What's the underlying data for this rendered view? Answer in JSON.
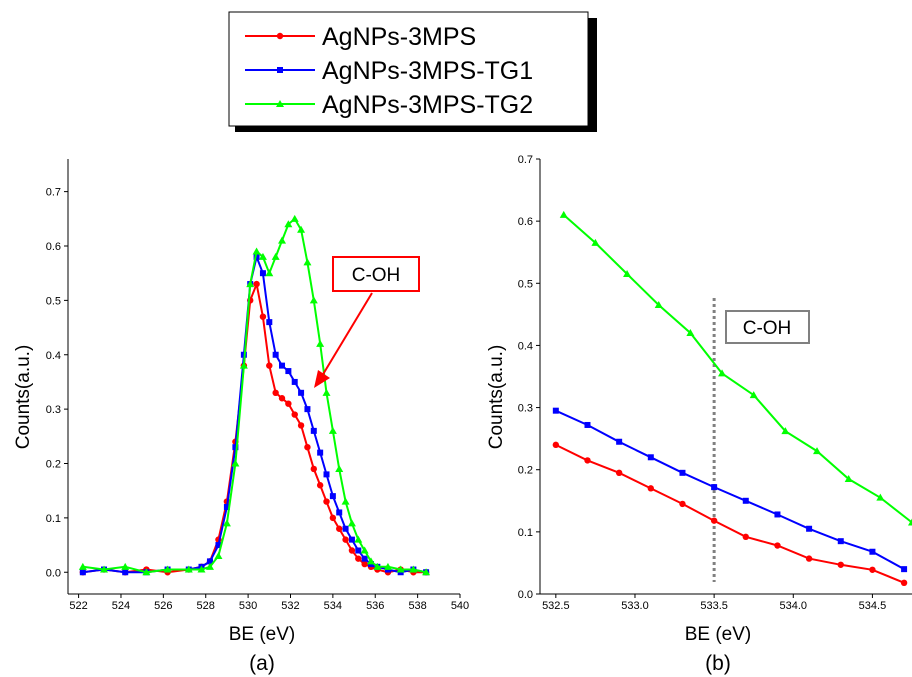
{
  "legend": {
    "entries": [
      {
        "label": "AgNPs-3MPS",
        "color": "#ff0000",
        "marker": "circle"
      },
      {
        "label": "AgNPs-3MPS-TG1",
        "color": "#0000ff",
        "marker": "square"
      },
      {
        "label": "AgNPs-3MPS-TG2",
        "color": "#00ff00",
        "marker": "triangle"
      }
    ]
  },
  "chart_data": [
    {
      "type": "line",
      "panel_label": "(a)",
      "xlabel": "BE (eV)",
      "ylabel": "Counts(a.u.)",
      "xlim": [
        521.5,
        540
      ],
      "ylim": [
        -0.04,
        0.76
      ],
      "xticks": [
        522,
        524,
        526,
        528,
        530,
        532,
        534,
        536,
        538,
        540
      ],
      "yticks": [
        0.0,
        0.1,
        0.2,
        0.3,
        0.4,
        0.5,
        0.6,
        0.7
      ],
      "annotation": {
        "text": "C-OH",
        "box_color": "#ff0000",
        "arrow_color": "#ff0000",
        "arrow_to": [
          533.6,
          0.32
        ]
      },
      "series": [
        {
          "name": "AgNPs-3MPS",
          "color": "#ff0000",
          "marker": "circle",
          "x": [
            522.2,
            523.2,
            524.2,
            525.2,
            526.2,
            527.2,
            527.8,
            528.2,
            528.6,
            529.0,
            529.4,
            529.8,
            530.1,
            530.4,
            530.7,
            531.0,
            531.3,
            531.6,
            531.9,
            532.2,
            532.5,
            532.8,
            533.1,
            533.4,
            533.7,
            534.0,
            534.3,
            534.6,
            534.9,
            535.2,
            535.5,
            535.8,
            536.1,
            536.6,
            537.2,
            537.8,
            538.4
          ],
          "y": [
            0.0,
            0.005,
            0.0,
            0.005,
            0.0,
            0.005,
            0.01,
            0.02,
            0.06,
            0.13,
            0.24,
            0.38,
            0.5,
            0.53,
            0.47,
            0.38,
            0.33,
            0.32,
            0.31,
            0.29,
            0.27,
            0.23,
            0.19,
            0.16,
            0.13,
            0.1,
            0.08,
            0.06,
            0.04,
            0.025,
            0.015,
            0.01,
            0.005,
            0.0,
            0.005,
            0.0,
            0.0
          ]
        },
        {
          "name": "AgNPs-3MPS-TG1",
          "color": "#0000ff",
          "marker": "square",
          "x": [
            522.2,
            523.2,
            524.2,
            525.2,
            526.2,
            527.2,
            527.8,
            528.2,
            528.6,
            529.0,
            529.4,
            529.8,
            530.1,
            530.4,
            530.7,
            531.0,
            531.3,
            531.6,
            531.9,
            532.2,
            532.5,
            532.8,
            533.1,
            533.4,
            533.7,
            534.0,
            534.3,
            534.6,
            534.9,
            535.2,
            535.5,
            535.8,
            536.1,
            536.6,
            537.2,
            537.8,
            538.4
          ],
          "y": [
            0.0,
            0.005,
            0.0,
            0.0,
            0.005,
            0.005,
            0.01,
            0.02,
            0.05,
            0.12,
            0.23,
            0.4,
            0.53,
            0.58,
            0.55,
            0.46,
            0.4,
            0.38,
            0.37,
            0.35,
            0.33,
            0.3,
            0.26,
            0.22,
            0.18,
            0.14,
            0.11,
            0.08,
            0.06,
            0.04,
            0.025,
            0.015,
            0.01,
            0.005,
            0.0,
            0.005,
            0.0
          ]
        },
        {
          "name": "AgNPs-3MPS-TG2",
          "color": "#00ff00",
          "marker": "triangle",
          "x": [
            522.2,
            523.2,
            524.2,
            525.2,
            526.2,
            527.2,
            527.8,
            528.2,
            528.6,
            529.0,
            529.4,
            529.8,
            530.1,
            530.4,
            530.7,
            531.0,
            531.3,
            531.6,
            531.9,
            532.2,
            532.5,
            532.8,
            533.1,
            533.4,
            533.7,
            534.0,
            534.3,
            534.6,
            534.9,
            535.2,
            535.5,
            535.8,
            536.1,
            536.6,
            537.2,
            537.8,
            538.4
          ],
          "y": [
            0.01,
            0.005,
            0.01,
            0.0,
            0.005,
            0.005,
            0.005,
            0.01,
            0.03,
            0.09,
            0.2,
            0.38,
            0.53,
            0.59,
            0.58,
            0.55,
            0.58,
            0.61,
            0.64,
            0.65,
            0.63,
            0.57,
            0.5,
            0.42,
            0.33,
            0.26,
            0.19,
            0.13,
            0.09,
            0.06,
            0.04,
            0.02,
            0.01,
            0.01,
            0.005,
            0.005,
            0.0
          ]
        }
      ]
    },
    {
      "type": "line",
      "panel_label": "(b)",
      "xlabel": "BE (eV)",
      "ylabel": "Counts(a.u.)",
      "xlim": [
        532.4,
        534.75
      ],
      "ylim": [
        0.0,
        0.7
      ],
      "xticks": [
        532.5,
        533.0,
        533.5,
        534.0,
        534.5
      ],
      "yticks": [
        0.0,
        0.1,
        0.2,
        0.3,
        0.4,
        0.5,
        0.6,
        0.7
      ],
      "vline": {
        "x": 533.5,
        "color": "#808080",
        "style": "dotted"
      },
      "annotation": {
        "text": "C-OH",
        "box_color": "#808080"
      },
      "series": [
        {
          "name": "AgNPs-3MPS",
          "color": "#ff0000",
          "marker": "circle",
          "x": [
            532.5,
            532.7,
            532.9,
            533.1,
            533.3,
            533.5,
            533.7,
            533.9,
            534.1,
            534.3,
            534.5,
            534.7
          ],
          "y": [
            0.24,
            0.215,
            0.195,
            0.17,
            0.145,
            0.118,
            0.092,
            0.078,
            0.057,
            0.047,
            0.039,
            0.018
          ]
        },
        {
          "name": "AgNPs-3MPS-TG1",
          "color": "#0000ff",
          "marker": "square",
          "x": [
            532.5,
            532.7,
            532.9,
            533.1,
            533.3,
            533.5,
            533.7,
            533.9,
            534.1,
            534.3,
            534.5,
            534.7
          ],
          "y": [
            0.295,
            0.272,
            0.245,
            0.22,
            0.195,
            0.172,
            0.15,
            0.128,
            0.105,
            0.085,
            0.068,
            0.04
          ]
        },
        {
          "name": "AgNPs-3MPS-TG2",
          "color": "#00ff00",
          "marker": "triangle",
          "x": [
            532.55,
            532.75,
            532.95,
            533.15,
            533.35,
            533.55,
            533.75,
            533.95,
            534.15,
            534.35,
            534.55,
            534.75
          ],
          "y": [
            0.61,
            0.565,
            0.515,
            0.465,
            0.42,
            0.355,
            0.32,
            0.262,
            0.23,
            0.185,
            0.155,
            0.115
          ]
        }
      ]
    }
  ]
}
